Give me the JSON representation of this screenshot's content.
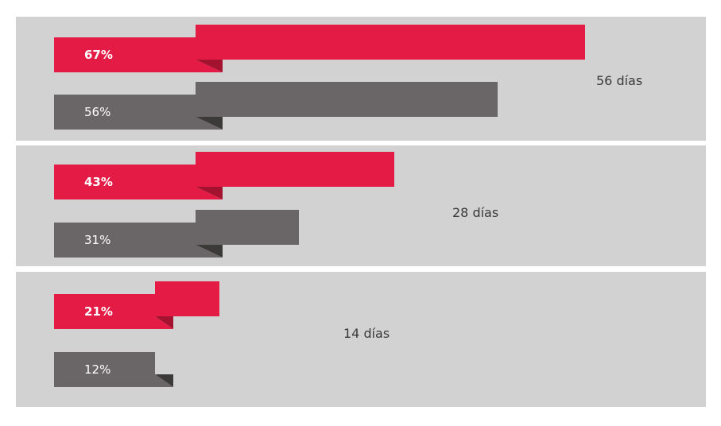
{
  "chart_data": {
    "type": "bar",
    "orientation": "horizontal",
    "xlim": [
      0,
      100
    ],
    "groups": [
      {
        "label": "56 días",
        "values": [
          67,
          56
        ],
        "value_labels": [
          "67%",
          "56%"
        ]
      },
      {
        "label": "28 días",
        "values": [
          43,
          31
        ],
        "value_labels": [
          "43%",
          "31%"
        ]
      },
      {
        "label": "14 días",
        "values": [
          21,
          12
        ],
        "value_labels": [
          "21%",
          "12%"
        ]
      }
    ],
    "series_colors": [
      "#e31b45",
      "#6a6566"
    ],
    "shadow_colors": [
      "#a3132f",
      "#3c3939"
    ],
    "panel_color": "#d2d2d2"
  }
}
